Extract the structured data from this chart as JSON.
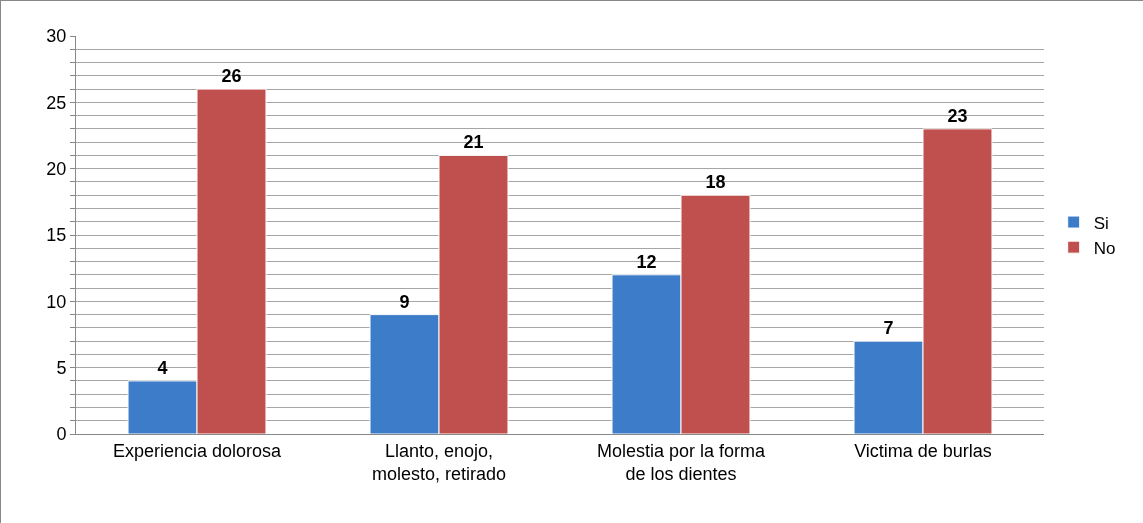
{
  "chart_data": {
    "type": "bar",
    "categories": [
      "Experiencia dolorosa",
      "Llanto, enojo,\nmolesto, retirado",
      "Molestia por la forma\nde los dientes",
      "Victima de burlas"
    ],
    "series": [
      {
        "name": "Si",
        "color": "#3d7cc9",
        "values": [
          4,
          9,
          12,
          7
        ]
      },
      {
        "name": "No",
        "color": "#c0504d",
        "values": [
          26,
          21,
          18,
          23
        ]
      }
    ],
    "ylim": [
      0,
      30
    ],
    "yticks": [
      0,
      {
        "value": 1,
        "label": null
      },
      {
        "value": 2,
        "label": null
      },
      {
        "value": 3,
        "label": null
      },
      {
        "value": 4,
        "label": null
      },
      5,
      {
        "value": 6,
        "label": null
      },
      {
        "value": 7,
        "label": null
      },
      {
        "value": 8,
        "label": null
      },
      {
        "value": 9,
        "label": null
      },
      10,
      {
        "value": 11,
        "label": null
      },
      {
        "value": 12,
        "label": null
      },
      {
        "value": 13,
        "label": null
      },
      {
        "value": 14,
        "label": null
      },
      15,
      {
        "value": 16,
        "label": null
      },
      {
        "value": 17,
        "label": null
      },
      {
        "value": 18,
        "label": null
      },
      {
        "value": 19,
        "label": null
      },
      20,
      {
        "value": 21,
        "label": null
      },
      {
        "value": 22,
        "label": null
      },
      {
        "value": 23,
        "label": null
      },
      {
        "value": 24,
        "label": null
      },
      25,
      {
        "value": 26,
        "label": null
      },
      {
        "value": 27,
        "label": null
      },
      {
        "value": 28,
        "label": null
      },
      {
        "value": 29,
        "label": null
      },
      30
    ],
    "grid": true,
    "legend": "right",
    "data_labels": true
  }
}
